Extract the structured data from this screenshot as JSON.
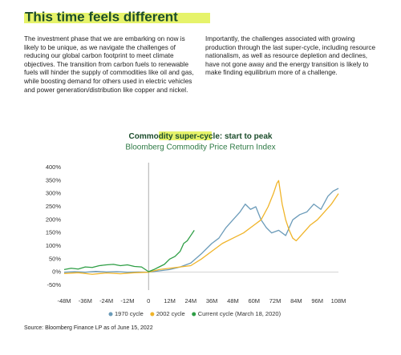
{
  "header": {
    "title": "This time feels different"
  },
  "paragraphs": [
    "The investment phase that we are embarking on now is likely to be unique, as we navigate the challenges of reducing our global carbon footprint to meet climate objectives. The transition from carbon fuels to renewable fuels will hinder the supply of commodities like oil and gas, while boosting demand for others used in electric vehicles and power generation/distribution like copper and nickel.",
    "Importantly, the challenges associated with growing production through the last super-cycle, including resource nationalism, as well as resource depletion and declines, have not gone away and the energy transition is likely to make finding equilibrium more of a challenge."
  ],
  "chart_data": {
    "type": "line",
    "title": [
      "Commodity",
      "super-cycle:",
      "start to peak"
    ],
    "subtitle": "Bloomberg Commodity Price Return Index",
    "xlim": [
      -48,
      108
    ],
    "xticks": [
      {
        "value": -48,
        "label": "-48M"
      },
      {
        "value": -36,
        "label": "-36M"
      },
      {
        "value": -24,
        "label": "-24M"
      },
      {
        "value": -12,
        "label": "-12M"
      },
      0,
      {
        "value": 12,
        "label": "12M"
      },
      {
        "value": 24,
        "label": "24M"
      },
      {
        "value": 36,
        "label": "36M"
      },
      {
        "value": 48,
        "label": "48M"
      },
      {
        "value": 60,
        "label": "60M"
      },
      {
        "value": 72,
        "label": "72M"
      },
      {
        "value": 84,
        "label": "84M"
      },
      {
        "value": 96,
        "label": "96M"
      },
      {
        "value": 108,
        "label": "108M"
      }
    ],
    "ylim": [
      -50,
      400
    ],
    "yticks": [
      {
        "value": -50,
        "label": "-50%"
      },
      {
        "value": 0,
        "label": "0%"
      },
      {
        "value": 50,
        "label": "50%"
      },
      {
        "value": 100,
        "label": "100%"
      },
      {
        "value": 150,
        "label": "150%"
      },
      {
        "value": 200,
        "label": "200%"
      },
      {
        "value": 250,
        "label": "250%"
      },
      {
        "value": 300,
        "label": "300%"
      },
      {
        "value": 350,
        "label": "350%"
      },
      {
        "value": 400,
        "label": "400%"
      }
    ],
    "series": [
      {
        "name": "1970 cycle",
        "color": "#6b9bb9",
        "x": [
          -48,
          -42,
          -36,
          -30,
          -24,
          -18,
          -12,
          -6,
          0,
          6,
          12,
          18,
          24,
          30,
          36,
          40,
          44,
          48,
          52,
          55,
          58,
          61,
          64,
          67,
          70,
          74,
          78,
          82,
          86,
          90,
          94,
          98,
          102,
          105,
          108
        ],
        "values": [
          0,
          2,
          0,
          3,
          1,
          2,
          0,
          1,
          0,
          5,
          10,
          20,
          35,
          70,
          110,
          130,
          170,
          200,
          230,
          260,
          240,
          250,
          200,
          170,
          150,
          160,
          140,
          200,
          220,
          230,
          260,
          240,
          290,
          310,
          320
        ]
      },
      {
        "name": "2002 cycle",
        "color": "#f0b429",
        "x": [
          -48,
          -40,
          -32,
          -24,
          -16,
          -8,
          0,
          6,
          12,
          18,
          24,
          30,
          36,
          42,
          48,
          54,
          60,
          64,
          68,
          71,
          73,
          74,
          76,
          78,
          80,
          82,
          84,
          88,
          92,
          96,
          100,
          104,
          108
        ],
        "values": [
          -5,
          -2,
          -8,
          -3,
          -6,
          -2,
          0,
          10,
          15,
          20,
          25,
          50,
          80,
          110,
          130,
          150,
          180,
          200,
          250,
          300,
          340,
          350,
          260,
          200,
          160,
          130,
          120,
          150,
          180,
          200,
          230,
          260,
          300
        ]
      },
      {
        "name": "Current cycle (March 18, 2020)",
        "color": "#2e9e45",
        "x": [
          -48,
          -44,
          -40,
          -36,
          -32,
          -28,
          -24,
          -20,
          -16,
          -12,
          -8,
          -4,
          0,
          3,
          6,
          9,
          12,
          15,
          18,
          20,
          22,
          24,
          26
        ],
        "values": [
          10,
          15,
          12,
          20,
          18,
          25,
          28,
          30,
          25,
          28,
          22,
          20,
          2,
          10,
          20,
          30,
          50,
          60,
          80,
          110,
          120,
          140,
          160
        ]
      }
    ],
    "source": "Source: Bloomberg Finance LP as of June 15, 2022"
  }
}
